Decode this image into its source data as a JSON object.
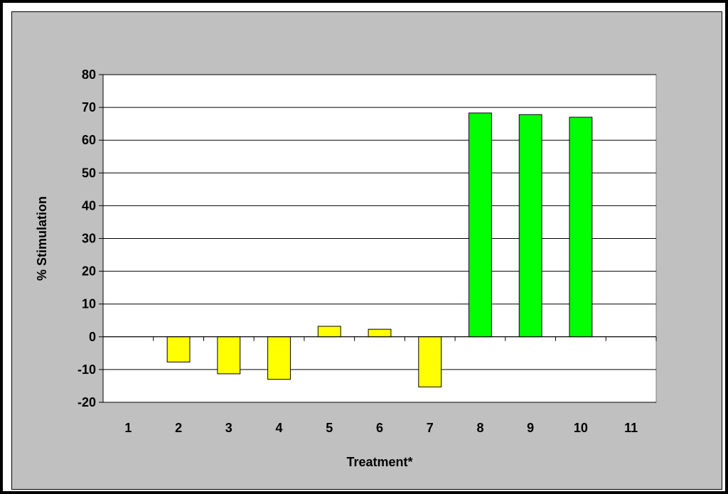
{
  "chart_data": {
    "type": "bar",
    "title": "",
    "xlabel": "Treatment*",
    "ylabel": "% Stimulation",
    "ylim": [
      -20,
      80
    ],
    "yticks": [
      -20,
      -10,
      0,
      10,
      20,
      30,
      40,
      50,
      60,
      70,
      80
    ],
    "grid": true,
    "categories": [
      "1",
      "2",
      "3",
      "4",
      "5",
      "6",
      "7",
      "8",
      "9",
      "10",
      "11"
    ],
    "values": [
      null,
      -7.7,
      -11.3,
      -13.0,
      3.2,
      2.3,
      -15.3,
      68.3,
      67.8,
      67.0,
      null
    ],
    "bar_colors": [
      "#ffff00",
      "#ffff00",
      "#ffff00",
      "#ffff00",
      "#ffff00",
      "#ffff00",
      "#ffff00",
      "#00ff00",
      "#00ff00",
      "#00ff00",
      "#00ff00"
    ],
    "plot_background": "#ffffff",
    "chart_background": "#c0c0c0"
  }
}
